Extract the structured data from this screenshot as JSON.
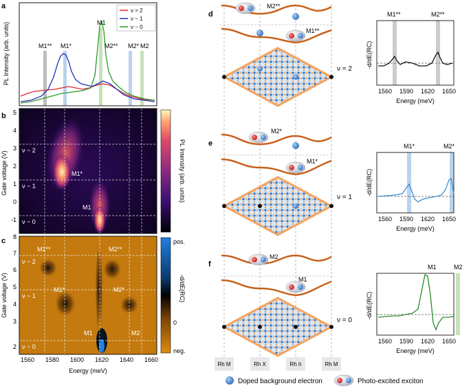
{
  "panels": {
    "a": "a",
    "b": "b",
    "c": "c",
    "d": "d",
    "e": "e",
    "f": "f"
  },
  "panel_a": {
    "ylabel": "PL Intensity (arb. units)",
    "legend": [
      "ν > 2",
      "ν ~ 1",
      "ν ~ 0"
    ],
    "legend_colors": [
      "#e0282d",
      "#1f2eb8",
      "#2a9a2a"
    ],
    "markers": {
      "m1ss": "M1**",
      "m1s": "M1*",
      "m1": "M1",
      "m2ss": "M2**",
      "m2s": "M2*",
      "m2": "M2"
    }
  },
  "panel_b": {
    "ylabel": "Gate voltage (V)",
    "yticks": [
      "5",
      "4",
      "3",
      "2",
      "1",
      "0",
      "-1"
    ],
    "nu_labels": [
      "ν ~ 2",
      "ν ~ 1",
      "ν ~ 0"
    ],
    "feature_labels": [
      "M1*",
      "M1"
    ],
    "colorbar_label": "PL Intensity (arb. units)"
  },
  "panel_c": {
    "ylabel": "Gate voltage (V)",
    "yticks": [
      "8",
      "7",
      "6",
      "5",
      "4",
      "3",
      "2"
    ],
    "xticks": [
      "1560",
      "1580",
      "1600",
      "1620",
      "1640",
      "1660"
    ],
    "xlabel": "Energy (meV)",
    "nu_labels": [
      "ν ~ 2",
      "ν ~ 1",
      "ν ~ 0"
    ],
    "feature_labels": [
      "M1**",
      "M2**",
      "M1*",
      "M2*",
      "M1",
      "M2"
    ],
    "colorbar_label": "-d/dE(RC)",
    "colorbar_ticks": [
      "pos.",
      "0",
      "neg."
    ]
  },
  "schematics": {
    "d_nu": "ν = 2",
    "e_nu": "ν = 1",
    "f_nu": "ν = 0",
    "d_labels": [
      "M2**",
      "M1**"
    ],
    "e_labels": [
      "M2*",
      "M1*"
    ],
    "f_labels": [
      "M2",
      "M1"
    ],
    "sites": [
      "Rh M",
      "Rh X",
      "Rh h",
      "Rh M"
    ]
  },
  "spectra": {
    "ylabel": "-d/dE(RC)",
    "xlabel": "Energy (meV)",
    "xticks": [
      "1560",
      "1590",
      "1620",
      "1650"
    ],
    "d_labels": [
      "M1**",
      "M2**"
    ],
    "e_labels": [
      "M1*",
      "M2*"
    ],
    "f_labels": [
      "M1",
      "M2"
    ],
    "colors": [
      "#111111",
      "#3a8fd0",
      "#2a8a2a"
    ]
  },
  "legend_bottom": {
    "electron": "Doped background electron",
    "exciton": "Photo-excited exciton"
  }
}
